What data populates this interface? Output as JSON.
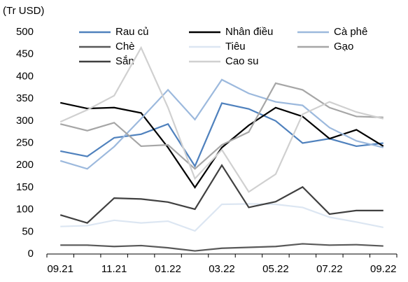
{
  "chart_data": {
    "type": "line",
    "y_label": "(Tr USD)",
    "categories": [
      "09.21",
      null,
      "11.21",
      null,
      "01.22",
      null,
      "03.22",
      null,
      "05.22",
      null,
      "07.22",
      null,
      "09.22"
    ],
    "ylim": [
      0,
      500
    ],
    "yticks": [
      0,
      50,
      100,
      150,
      200,
      250,
      300,
      350,
      400,
      450,
      500
    ],
    "series": [
      {
        "name": "Rau củ",
        "color": "#4f81bd",
        "values": [
          232,
          220,
          262,
          270,
          293,
          198,
          340,
          327,
          300,
          250,
          260,
          243,
          250
        ]
      },
      {
        "name": "Nhân điều",
        "color": "#000000",
        "values": [
          341,
          328,
          330,
          318,
          240,
          150,
          240,
          290,
          330,
          310,
          260,
          280,
          243
        ]
      },
      {
        "name": "Cà phê",
        "color": "#9cb9dd",
        "values": [
          210,
          192,
          242,
          305,
          370,
          303,
          393,
          362,
          343,
          335,
          285,
          255,
          240
        ]
      },
      {
        "name": "Chè",
        "color": "#595959",
        "values": [
          20,
          20,
          17,
          19,
          14,
          7,
          13,
          15,
          17,
          23,
          20,
          21,
          18
        ]
      },
      {
        "name": "Tiêu",
        "color": "#dce6f2",
        "values": [
          62,
          64,
          76,
          70,
          74,
          52,
          112,
          113,
          112,
          105,
          83,
          72,
          60
        ]
      },
      {
        "name": "Gạo",
        "color": "#a6a6a6",
        "values": [
          293,
          278,
          296,
          243,
          246,
          192,
          246,
          275,
          385,
          370,
          330,
          310,
          308
        ]
      },
      {
        "name": "Sắn",
        "color": "#404040",
        "values": [
          88,
          70,
          126,
          124,
          117,
          101,
          200,
          105,
          118,
          151,
          90,
          98,
          98
        ]
      },
      {
        "name": "Cao su",
        "color": "#d0d0d0",
        "values": [
          298,
          325,
          357,
          465,
          330,
          170,
          235,
          140,
          180,
          315,
          343,
          320,
          305
        ]
      }
    ]
  }
}
